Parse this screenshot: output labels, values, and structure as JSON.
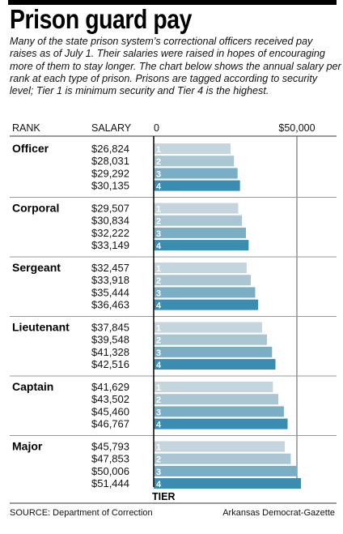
{
  "title": "Prison guard pay",
  "intro": "Many of the state prison system’s correctional officers received pay raises as of July 1. Their salaries were raised in hopes of encouraging more of them to stay longer. The chart below shows the annual salary per rank at each type of prison. Prisons are tagged according to security level; Tier 1 is minimum security and Tier 4 is the highest.",
  "source": "SOURCE: Department of Correction",
  "credit": "Arkansas Democrat-Gazette",
  "colors": {
    "tier1": "#c5d5dd",
    "tier2": "#a9c6d2",
    "tier3": "#7aaec4",
    "tier4": "#3a8db1"
  },
  "chart_data": {
    "type": "bar",
    "orientation": "horizontal",
    "column_headers": {
      "rank": "RANK",
      "salary": "SALARY"
    },
    "axis_ticks": [
      {
        "value": 0,
        "label": "0"
      },
      {
        "value": 50000,
        "label": "$50,000"
      }
    ],
    "xlim": [
      0,
      52000
    ],
    "tier_axis_label": "TIER",
    "tiers": [
      "1",
      "2",
      "3",
      "4"
    ],
    "groups": [
      {
        "rank": "Officer",
        "values": [
          26824,
          28031,
          29292,
          30135
        ],
        "labels": [
          "$26,824",
          "$28,031",
          "$29,292",
          "$30,135"
        ]
      },
      {
        "rank": "Corporal",
        "values": [
          29507,
          30834,
          32222,
          33149
        ],
        "labels": [
          "$29,507",
          "$30,834",
          "$32,222",
          "$33,149"
        ]
      },
      {
        "rank": "Sergeant",
        "values": [
          32457,
          33918,
          35444,
          36463
        ],
        "labels": [
          "$32,457",
          "$33,918",
          "$35,444",
          "$36,463"
        ]
      },
      {
        "rank": "Lieutenant",
        "values": [
          37845,
          39548,
          41328,
          42516
        ],
        "labels": [
          "$37,845",
          "$39,548",
          "$41,328",
          "$42,516"
        ]
      },
      {
        "rank": "Captain",
        "values": [
          41629,
          43502,
          45460,
          46767
        ],
        "labels": [
          "$41,629",
          "$43,502",
          "$45,460",
          "$46,767"
        ]
      },
      {
        "rank": "Major",
        "values": [
          45793,
          47853,
          50006,
          51444
        ],
        "labels": [
          "$45,793",
          "$47,853",
          "$50,006",
          "$51,444"
        ]
      }
    ]
  }
}
